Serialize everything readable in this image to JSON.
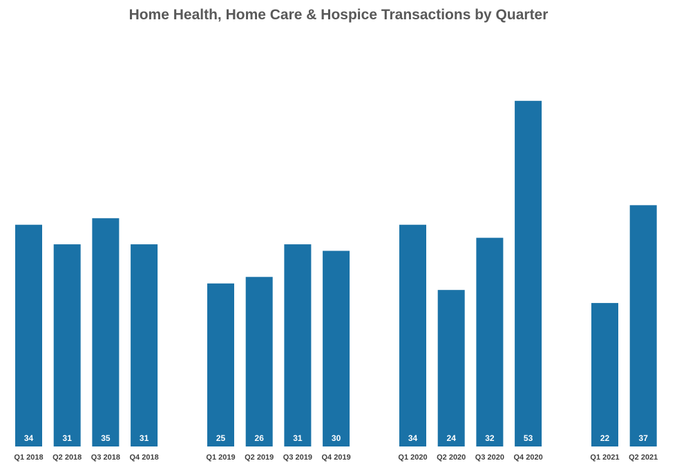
{
  "chart_data": {
    "type": "bar",
    "title": "Home Health, Home Care & Hospice Transactions by Quarter",
    "xlabel": "",
    "ylabel": "",
    "ylim": [
      0,
      56
    ],
    "grid": false,
    "legend": "none",
    "bar_color": "#1a72a7",
    "categories": [
      "Q1 2018",
      "Q2 2018",
      "Q3 2018",
      "Q4 2018",
      "Q1 2019",
      "Q2 2019",
      "Q3 2019",
      "Q4 2019",
      "Q1 2020",
      "Q2 2020",
      "Q3 2020",
      "Q4 2020",
      "Q1 2021",
      "Q2 2021"
    ],
    "values": [
      34,
      31,
      35,
      31,
      25,
      26,
      31,
      30,
      34,
      24,
      32,
      53,
      22,
      37
    ]
  }
}
